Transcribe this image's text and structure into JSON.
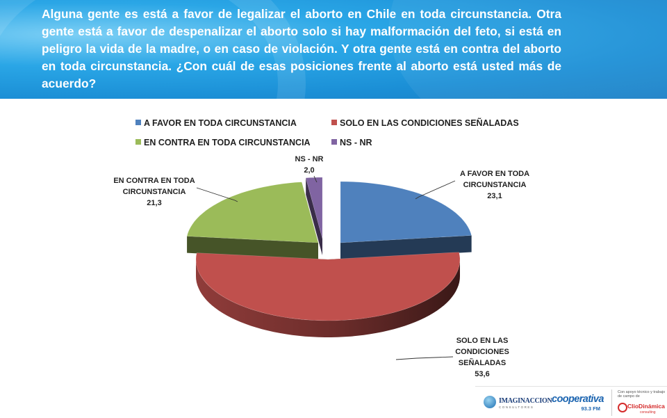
{
  "question": "Alguna gente es está a favor de legalizar el aborto en Chile en toda circunstancia. Otra gente está a favor de despenalizar el aborto solo si hay malformación del feto, si está en peligro la vida de la madre, o en caso de violación. Y otra gente está en contra del aborto en toda circunstancia. ¿Con cuál de esas posiciones frente al aborto está usted más de acuerdo?",
  "chart_data": {
    "type": "pie",
    "style": "3d-exploded",
    "legend_position": "top",
    "series": [
      {
        "name": "A FAVOR EN TODA CIRCUNSTANCIA",
        "label_lines": [
          "A FAVOR EN TODA",
          "CIRCUNSTANCIA"
        ],
        "value": 23.1,
        "value_label": "23,1",
        "color": "#4f81bd"
      },
      {
        "name": "SOLO EN LAS CONDICIONES SEÑALADAS",
        "label_lines": [
          "SOLO EN LAS",
          "CONDICIONES",
          "SEÑALADAS"
        ],
        "value": 53.6,
        "value_label": "53,6",
        "color": "#c0504d"
      },
      {
        "name": "EN CONTRA EN TODA CIRCUNSTANCIA",
        "label_lines": [
          "EN CONTRA EN TODA",
          "CIRCUNSTANCIA"
        ],
        "value": 21.3,
        "value_label": "21,3",
        "color": "#9bbb59"
      },
      {
        "name": "NS - NR",
        "label_lines": [
          "NS - NR"
        ],
        "value": 2.0,
        "value_label": "2,0",
        "color": "#8064a2"
      }
    ]
  },
  "logos": {
    "imaginacion": "IMAGINACCION",
    "imaginacion_sub": "CONSULTORES",
    "cooperativa": "cooperativa",
    "cooperativa_freq": "93.3 FM",
    "clio_note": "Con apoyo técnico y trabajo de campo de",
    "clio": "ClioDinámica",
    "clio_sub": "consulting"
  }
}
